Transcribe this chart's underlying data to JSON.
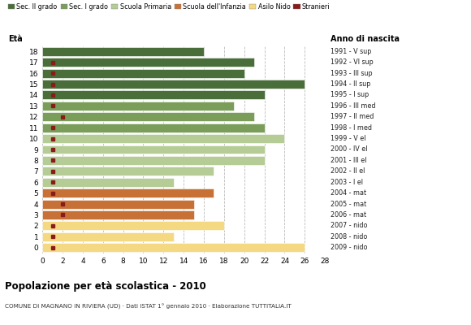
{
  "ages": [
    18,
    17,
    16,
    15,
    14,
    13,
    12,
    11,
    10,
    9,
    8,
    7,
    6,
    5,
    4,
    3,
    2,
    1,
    0
  ],
  "years": [
    "1991 - V sup",
    "1992 - VI sup",
    "1993 - III sup",
    "1994 - II sup",
    "1995 - I sup",
    "1996 - III med",
    "1997 - II med",
    "1998 - I med",
    "1999 - V el",
    "2000 - IV el",
    "2001 - III el",
    "2002 - II el",
    "2003 - I el",
    "2004 - mat",
    "2005 - mat",
    "2006 - mat",
    "2007 - nido",
    "2008 - nido",
    "2009 - nido"
  ],
  "values": [
    16,
    21,
    20,
    26,
    22,
    19,
    21,
    22,
    24,
    22,
    22,
    17,
    13,
    17,
    15,
    15,
    18,
    13,
    26
  ],
  "foreigners": [
    0,
    1,
    1,
    1,
    1,
    1,
    2,
    1,
    1,
    1,
    1,
    1,
    1,
    1,
    2,
    2,
    1,
    1,
    1
  ],
  "bar_colors": [
    "#4a6e3a",
    "#4a6e3a",
    "#4a6e3a",
    "#4a6e3a",
    "#4a6e3a",
    "#7a9e5a",
    "#7a9e5a",
    "#7a9e5a",
    "#b5cc96",
    "#b5cc96",
    "#b5cc96",
    "#b5cc96",
    "#b5cc96",
    "#c87137",
    "#c87137",
    "#c87137",
    "#f5d882",
    "#f5d882",
    "#f5d882"
  ],
  "legend_labels": [
    "Sec. II grado",
    "Sec. I grado",
    "Scuola Primaria",
    "Scuola dell'Infanzia",
    "Asilo Nido",
    "Stranieri"
  ],
  "legend_colors": [
    "#4a6e3a",
    "#7a9e5a",
    "#b5cc96",
    "#c87137",
    "#f5d882",
    "#8b1a1a"
  ],
  "title": "Popolazione per età scolastica - 2010",
  "subtitle": "COMUNE DI MAGNANO IN RIVIERA (UD) · Dati ISTAT 1° gennaio 2010 · Elaborazione TUTTITALIA.IT",
  "xlabel_eta": "Età",
  "xlabel_anno": "Anno di nascita",
  "xlim": [
    0,
    28
  ],
  "xticks": [
    0,
    2,
    4,
    6,
    8,
    10,
    12,
    14,
    16,
    18,
    20,
    22,
    24,
    26,
    28
  ],
  "bar_height": 0.82,
  "foreigner_color": "#8b1a1a",
  "foreigner_size": 3.5,
  "bg_color": "#ffffff",
  "grid_color": "#bbbbbb"
}
